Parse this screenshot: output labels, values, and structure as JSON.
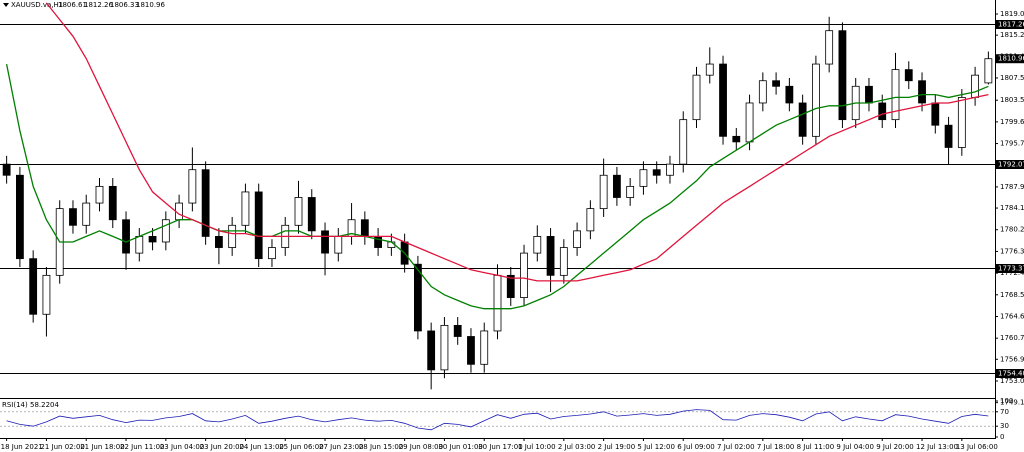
{
  "chart_data": {
    "type": "candlestick",
    "title": "XAUUSD.va,H1",
    "categories": [
      "18 Jun 2021",
      null,
      null,
      "21 Jun 02:00",
      null,
      null,
      "21 Jun 18:00",
      null,
      null,
      "22 Jun 11:00",
      null,
      null,
      "23 Jun 04:00",
      null,
      null,
      "23 Jun 20:00",
      null,
      null,
      "24 Jun 13:00",
      null,
      null,
      "25 Jun 06:00",
      null,
      null,
      "27 Jun 23:00",
      null,
      null,
      "28 Jun 15:00",
      null,
      null,
      "29 Jun 08:00",
      null,
      null,
      "30 Jun 01:00",
      null,
      null,
      "30 Jun 17:00",
      null,
      null,
      "1 Jul 10:00",
      null,
      null,
      "2 Jul 03:00",
      null,
      null,
      "2 Jul 19:00",
      null,
      null,
      "5 Jul 12:00",
      null,
      null,
      "6 Jul 09:00",
      null,
      null,
      "7 Jul 02:00",
      null,
      null,
      "7 Jul 18:00",
      null,
      null,
      "8 Jul 11:00",
      null,
      null,
      "9 Jul 04:00",
      null,
      null,
      "9 Jul 20:00",
      null,
      null,
      "12 Jul 13:00",
      null,
      null,
      "13 Jul 06:00",
      null,
      null
    ],
    "open": [
      1792,
      1790,
      1775,
      1765,
      1772,
      1784,
      1781,
      1785,
      1788,
      1782,
      1776,
      1779,
      1778,
      1782,
      1785,
      1791,
      1779,
      1777,
      1781,
      1787,
      1775,
      1777,
      1781,
      1786,
      1780,
      1776,
      1779,
      1782,
      1779,
      1777,
      1778,
      1774,
      1762,
      1755,
      1763,
      1761,
      1756,
      1762,
      1772,
      1768,
      1776,
      1779,
      1772,
      1777,
      1780,
      1784,
      1790,
      1786,
      1788,
      1791,
      1790,
      1792,
      1800,
      1808,
      1810,
      1797,
      1796,
      1803,
      1807,
      1806,
      1803,
      1797,
      1810,
      1816,
      1800,
      1806,
      1803,
      1800,
      1809,
      1807,
      1803,
      1799,
      1795,
      1804,
      1806.61
    ],
    "high": [
      1793.5,
      1791.5,
      1776.5,
      1773.5,
      1785.5,
      1785.5,
      1786.5,
      1789.5,
      1789.5,
      1783.5,
      1780.5,
      1780.5,
      1783.5,
      1786.5,
      1795,
      1792.5,
      1780.5,
      1782.5,
      1788.5,
      1788.5,
      1778.5,
      1782.5,
      1789,
      1787.5,
      1781.5,
      1780.5,
      1785,
      1783.5,
      1780.5,
      1779.5,
      1779.5,
      1775.5,
      1763.5,
      1764.5,
      1764.5,
      1762.5,
      1763.5,
      1774,
      1773.5,
      1777.5,
      1781,
      1780.5,
      1778.5,
      1781.5,
      1785.5,
      1793,
      1791.5,
      1789.5,
      1792.5,
      1792.5,
      1793.5,
      1801.5,
      1809.5,
      1813,
      1811.5,
      1798.5,
      1804.5,
      1808.5,
      1808.5,
      1807.5,
      1804.5,
      1811.5,
      1818.5,
      1817.5,
      1807.5,
      1807.5,
      1804.5,
      1812,
      1810.5,
      1808.5,
      1804.5,
      1800.5,
      1805.5,
      1809.5,
      1812.26
    ],
    "low": [
      1788.5,
      1773.5,
      1763.5,
      1761,
      1770.5,
      1779.5,
      1779.5,
      1783.5,
      1780.5,
      1773,
      1774.5,
      1776.5,
      1776.5,
      1780.5,
      1783.5,
      1777.5,
      1774,
      1775.5,
      1779.5,
      1773.5,
      1773.5,
      1775.5,
      1779.5,
      1778.5,
      1772,
      1774.5,
      1777.5,
      1777.5,
      1775.5,
      1775.5,
      1772.5,
      1760.5,
      1751.5,
      1753.5,
      1759.5,
      1754.5,
      1754.5,
      1760.5,
      1766.5,
      1766.5,
      1774.5,
      1769,
      1770.5,
      1775.5,
      1778.5,
      1782.5,
      1784.5,
      1784.5,
      1786.5,
      1788.5,
      1788.5,
      1790.5,
      1798.5,
      1806.5,
      1795.5,
      1794.5,
      1794.5,
      1801.5,
      1804.5,
      1801.5,
      1795.5,
      1795.5,
      1808.5,
      1798.5,
      1798.5,
      1801.5,
      1798.5,
      1798.5,
      1805.5,
      1801.5,
      1797.5,
      1792,
      1793.5,
      1802.5,
      1806.33
    ],
    "close": [
      1790,
      1775,
      1765,
      1772,
      1784,
      1781,
      1785,
      1788,
      1782,
      1776,
      1779,
      1778,
      1782,
      1785,
      1791,
      1779,
      1777,
      1781,
      1787,
      1775,
      1777,
      1781,
      1786,
      1780,
      1776,
      1779,
      1782,
      1779,
      1777,
      1778,
      1774,
      1762,
      1755,
      1763,
      1761,
      1756,
      1762,
      1772,
      1768,
      1776,
      1779,
      1772,
      1777,
      1780,
      1784,
      1790,
      1786,
      1788,
      1791,
      1790,
      1792,
      1800,
      1808,
      1810,
      1797,
      1796,
      1803,
      1807,
      1806,
      1803,
      1797,
      1810,
      1816,
      1800,
      1806,
      1803,
      1800,
      1809,
      1807,
      1803,
      1799,
      1795,
      1804,
      1808,
      1810.96
    ],
    "up_color": "#ffffff",
    "down_color": "#000000",
    "moving_averages": [
      {
        "color": "#008000",
        "values": [
          1810,
          1798,
          1788,
          1782,
          1778,
          1778,
          1779,
          1780,
          1779,
          1778,
          1779,
          1780,
          1781,
          1782,
          1782,
          1781,
          1780,
          1780,
          1780,
          1779,
          1779,
          1780,
          1780,
          1779,
          1779,
          1779,
          1779.5,
          1779,
          1778.5,
          1778,
          1776,
          1773,
          1770,
          1768.5,
          1767.5,
          1766.5,
          1766,
          1766,
          1766,
          1766.5,
          1767.5,
          1768.5,
          1770,
          1772,
          1774,
          1776,
          1778,
          1780,
          1782,
          1783.5,
          1785,
          1787,
          1789,
          1791.5,
          1793,
          1794.5,
          1796,
          1797.5,
          1799,
          1800,
          1801,
          1802,
          1802.5,
          1802.5,
          1803,
          1803,
          1803.5,
          1804,
          1804,
          1804.5,
          1804.5,
          1804,
          1804.5,
          1805,
          1806
        ]
      },
      {
        "color": "#e0143c",
        "values": [
          null,
          null,
          null,
          1821,
          1818,
          1815,
          1811,
          1806,
          1801,
          1796,
          1791,
          1787,
          1785,
          1783,
          1782,
          1781,
          1780,
          1779.5,
          1779.5,
          1779,
          1779,
          1779,
          1779,
          1779,
          1779,
          1779,
          1779,
          1779,
          1779,
          1779,
          1778,
          1777,
          1776,
          1775,
          1774,
          1773,
          1772.5,
          1772,
          1771.5,
          1771.5,
          1771,
          1771,
          1771,
          1771,
          1771.5,
          1772,
          1772.5,
          1773,
          1774,
          1775,
          1777,
          1779,
          1781,
          1783,
          1785,
          1786.5,
          1788,
          1789.5,
          1791,
          1792.5,
          1794,
          1795.5,
          1797,
          1798,
          1799,
          1800,
          1801,
          1801.5,
          1802,
          1802.5,
          1803,
          1803,
          1803.5,
          1804,
          1804.5
        ]
      }
    ],
    "ylim": [
      1749.94,
      1821.52
    ],
    "yticks": [
      {
        "value": 1819,
        "label": "1819.00"
      },
      {
        "value": 1815.2,
        "label": "1815.20"
      },
      {
        "value": 1811.4,
        "label": "1811.40"
      },
      {
        "value": 1807.5,
        "label": "1807.50"
      },
      {
        "value": 1803.5,
        "label": "1803.50"
      },
      {
        "value": 1799.6,
        "label": "1799.60"
      },
      {
        "value": 1795.7,
        "label": "1795.70"
      },
      {
        "value": 1791.8,
        "label": "1791.80"
      },
      {
        "value": 1787.9,
        "label": "1787.90"
      },
      {
        "value": 1784.1,
        "label": "1784.10"
      },
      {
        "value": 1780.2,
        "label": "1780.20"
      },
      {
        "value": 1776.3,
        "label": "1776.30"
      },
      {
        "value": 1772.4,
        "label": "1772.40"
      },
      {
        "value": 1768.5,
        "label": "1768.50"
      },
      {
        "value": 1764.6,
        "label": "1764.60"
      },
      {
        "value": 1760.7,
        "label": "1760.70"
      },
      {
        "value": 1756.9,
        "label": "1756.90"
      },
      {
        "value": 1753,
        "label": "1753.00"
      },
      {
        "value": 1749.1,
        "label": "1749.10"
      }
    ],
    "levels": [
      1817.26,
      1792.07,
      1773.37,
      {
        "value": 1754.4,
        "label": "1754.40"
      }
    ],
    "rsi": {
      "name": "RSI(14)",
      "color": "#1c1cb4",
      "values": [
        45,
        35,
        30,
        42,
        58,
        52,
        56,
        60,
        48,
        40,
        47,
        46,
        53,
        57,
        65,
        45,
        42,
        50,
        60,
        38,
        44,
        52,
        58,
        48,
        42,
        48,
        53,
        47,
        44,
        46,
        38,
        25,
        20,
        38,
        35,
        28,
        45,
        62,
        52,
        63,
        66,
        50,
        57,
        60,
        64,
        70,
        58,
        61,
        65,
        60,
        63,
        72,
        76,
        74,
        48,
        47,
        60,
        65,
        62,
        55,
        45,
        64,
        70,
        45,
        56,
        50,
        45,
        62,
        58,
        50,
        44,
        38,
        57,
        63,
        58.2204
      ],
      "ylim": [
        0,
        100
      ],
      "yticks": [
        100,
        70,
        30,
        0
      ]
    }
  }
}
